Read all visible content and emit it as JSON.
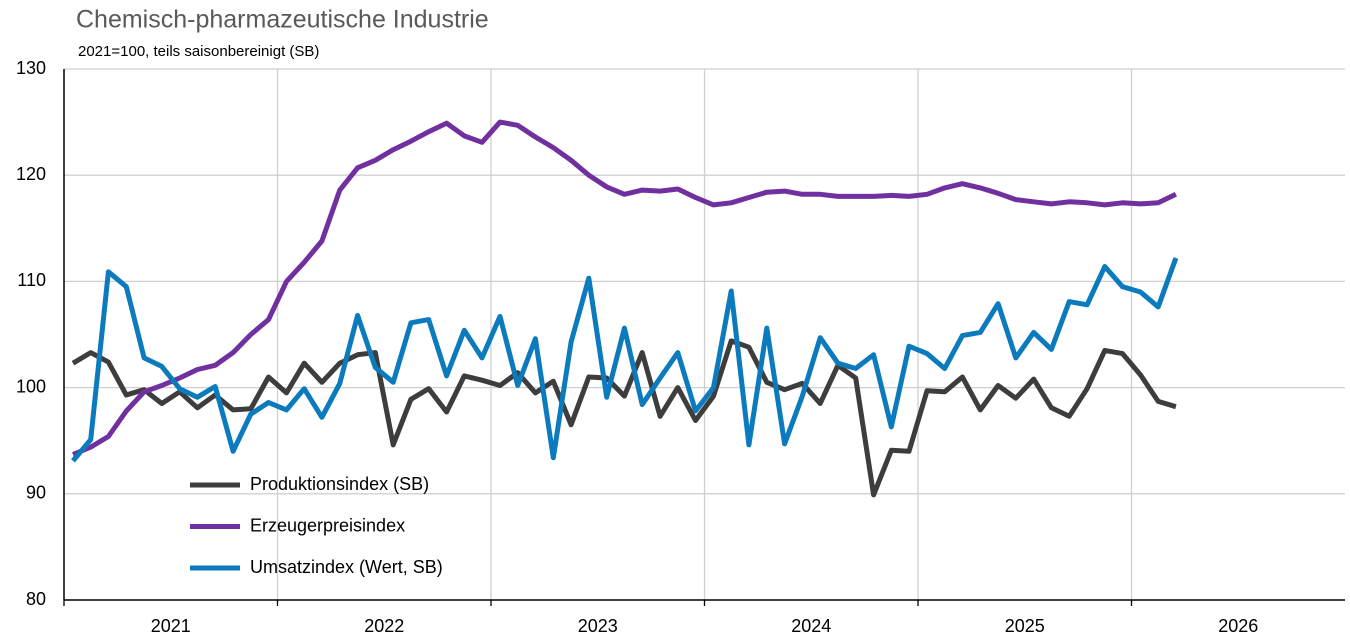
{
  "chart_data": {
    "type": "line",
    "title": "Chemisch-pharmazeutische Industrie",
    "subtitle": "2021=100, teils saisonbereinigt (SB)",
    "x": [
      2021.042,
      2021.125,
      2021.208,
      2021.292,
      2021.375,
      2021.458,
      2021.542,
      2021.625,
      2021.708,
      2021.792,
      2021.875,
      2021.958,
      2022.042,
      2022.125,
      2022.208,
      2022.292,
      2022.375,
      2022.458,
      2022.542,
      2022.625,
      2022.708,
      2022.792,
      2022.875,
      2022.958,
      2023.042,
      2023.125,
      2023.208,
      2023.292,
      2023.375,
      2023.458,
      2023.542,
      2023.625,
      2023.708,
      2023.792,
      2023.875,
      2023.958,
      2024.042,
      2024.125,
      2024.208,
      2024.292,
      2024.375,
      2024.458,
      2024.542,
      2024.625,
      2024.708,
      2024.792,
      2024.875,
      2024.958,
      2025.042,
      2025.125,
      2025.208,
      2025.292,
      2025.375,
      2025.458,
      2025.542,
      2025.625,
      2025.708,
      2025.792,
      2025.875,
      2025.958,
      2026.042,
      2026.125,
      2026.208
    ],
    "xlim": [
      2021,
      2027
    ],
    "xticks": [
      2021,
      2022,
      2023,
      2024,
      2025,
      2026
    ],
    "ylim": [
      80,
      130
    ],
    "yticks": [
      80,
      90,
      100,
      110,
      120,
      130
    ],
    "grid": true,
    "legend": "lower left",
    "series": [
      {
        "name": "Produktionsindex (SB)",
        "color": "#3d3d3d",
        "values": [
          102.3,
          103.3,
          102.4,
          99.3,
          99.8,
          98.5,
          99.6,
          98.1,
          99.3,
          97.9,
          98.0,
          101.0,
          99.5,
          102.3,
          100.5,
          102.3,
          103.1,
          103.3,
          94.6,
          98.9,
          99.9,
          97.7,
          101.1,
          100.7,
          100.2,
          101.4,
          99.5,
          100.6,
          96.5,
          101.0,
          100.9,
          99.2,
          103.3,
          97.3,
          100.0,
          96.9,
          99.2,
          104.4,
          103.8,
          100.5,
          99.8,
          100.4,
          98.5,
          102.1,
          100.9,
          89.9,
          94.1,
          94.0,
          99.7,
          99.6,
          101.0,
          97.9,
          100.2,
          99.0,
          100.8,
          98.1,
          97.3,
          99.9,
          103.5,
          103.2,
          101.2,
          98.7,
          98.2
        ]
      },
      {
        "name": "Erzeugerpreisindex",
        "color": "#7030a0",
        "values": [
          93.7,
          94.4,
          95.4,
          97.8,
          99.6,
          100.2,
          100.9,
          101.7,
          102.1,
          103.3,
          105.0,
          106.4,
          110.0,
          111.8,
          113.8,
          118.6,
          120.7,
          121.4,
          122.4,
          123.2,
          124.1,
          124.9,
          123.7,
          123.1,
          125.0,
          124.7,
          123.6,
          122.6,
          121.4,
          120.0,
          118.9,
          118.2,
          118.6,
          118.5,
          118.7,
          117.9,
          117.2,
          117.4,
          117.9,
          118.4,
          118.5,
          118.2,
          118.2,
          118.0,
          118.0,
          118.0,
          118.1,
          118.0,
          118.2,
          118.8,
          119.2,
          118.8,
          118.3,
          117.7,
          117.5,
          117.3,
          117.5,
          117.4,
          117.2,
          117.4,
          117.3,
          117.4,
          118.2
        ]
      },
      {
        "name": "Umsatzindex (Wert, SB)",
        "color": "#0b7bbd",
        "values": [
          93.1,
          95.1,
          110.9,
          109.5,
          102.8,
          102.0,
          99.9,
          99.1,
          100.1,
          94.0,
          97.5,
          98.6,
          97.9,
          99.9,
          97.2,
          100.4,
          106.8,
          101.9,
          100.5,
          106.1,
          106.4,
          101.1,
          105.4,
          102.8,
          106.7,
          100.2,
          104.6,
          93.4,
          104.3,
          110.3,
          99.1,
          105.6,
          98.4,
          100.9,
          103.3,
          97.8,
          100.0,
          109.1,
          94.6,
          105.6,
          94.7,
          99.2,
          104.7,
          102.3,
          101.8,
          103.1,
          96.3,
          103.9,
          103.2,
          101.8,
          104.9,
          105.2,
          107.9,
          102.8,
          105.2,
          103.6,
          108.1,
          107.8,
          111.4,
          109.5,
          109.0,
          107.6,
          112.2
        ]
      }
    ]
  }
}
